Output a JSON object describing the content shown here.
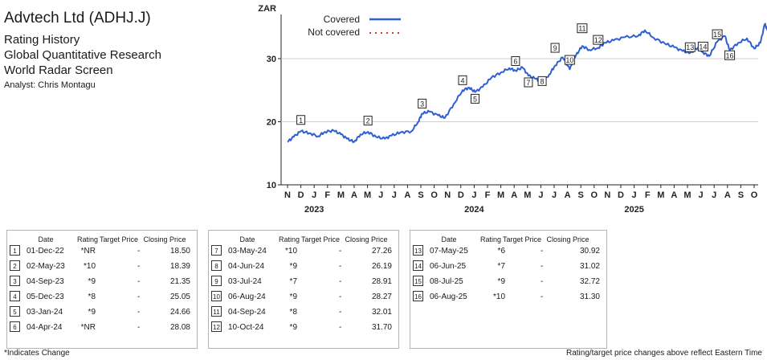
{
  "header": {
    "title": "Advtech Ltd (ADHJ.J)",
    "line1": "Rating History",
    "line2": "Global Quantitative Research",
    "line3": "World Radar Screen",
    "analyst": "Analyst: Chris Montagu"
  },
  "chart_data": {
    "type": "line",
    "ylabel": "ZAR",
    "ylim": [
      10,
      37
    ],
    "yticks": [
      10,
      20,
      30
    ],
    "grid": true,
    "legend": {
      "placement": "top",
      "covered": "Covered",
      "not_covered": "Not covered"
    },
    "x_month_labels": [
      "N",
      "D",
      "J",
      "F",
      "M",
      "A",
      "M",
      "J",
      "J",
      "A",
      "S",
      "O",
      "N",
      "D",
      "J",
      "F",
      "M",
      "A",
      "M",
      "J",
      "J",
      "A",
      "S",
      "O",
      "N",
      "D",
      "J",
      "F",
      "M",
      "A",
      "M",
      "J",
      "J",
      "A",
      "S",
      "O"
    ],
    "x_year_labels": [
      "2023",
      "2024",
      "2025"
    ],
    "start_month": "2022-11",
    "series": [
      {
        "color": "#2f5fd0",
        "points": [
          [
            "2022-11-01",
            16.8
          ],
          [
            "2022-11-15",
            17.6
          ],
          [
            "2022-12-01",
            18.5
          ],
          [
            "2022-12-20",
            18.2
          ],
          [
            "2023-01-10",
            17.7
          ],
          [
            "2023-01-25",
            18.4
          ],
          [
            "2023-02-15",
            18.6
          ],
          [
            "2023-03-01",
            18.0
          ],
          [
            "2023-03-15",
            17.3
          ],
          [
            "2023-04-01",
            16.8
          ],
          [
            "2023-04-15",
            18.0
          ],
          [
            "2023-05-02",
            18.4
          ],
          [
            "2023-05-20",
            17.6
          ],
          [
            "2023-06-10",
            17.3
          ],
          [
            "2023-06-25",
            17.8
          ],
          [
            "2023-07-15",
            18.3
          ],
          [
            "2023-08-10",
            18.5
          ],
          [
            "2023-08-25",
            20.0
          ],
          [
            "2023-09-04",
            21.3
          ],
          [
            "2023-09-20",
            21.6
          ],
          [
            "2023-10-10",
            21.0
          ],
          [
            "2023-10-25",
            20.6
          ],
          [
            "2023-11-15",
            22.8
          ],
          [
            "2023-12-05",
            25.0
          ],
          [
            "2023-12-20",
            25.4
          ],
          [
            "2024-01-03",
            24.7
          ],
          [
            "2024-01-20",
            25.5
          ],
          [
            "2024-02-10",
            27.0
          ],
          [
            "2024-03-01",
            27.8
          ],
          [
            "2024-03-20",
            28.5
          ],
          [
            "2024-04-04",
            28.1
          ],
          [
            "2024-04-20",
            28.6
          ],
          [
            "2024-05-03",
            27.3
          ],
          [
            "2024-05-20",
            26.8
          ],
          [
            "2024-06-04",
            26.2
          ],
          [
            "2024-06-20",
            27.5
          ],
          [
            "2024-07-03",
            28.9
          ],
          [
            "2024-07-20",
            30.2
          ],
          [
            "2024-08-06",
            28.3
          ],
          [
            "2024-08-20",
            30.5
          ],
          [
            "2024-09-04",
            32.0
          ],
          [
            "2024-09-20",
            31.4
          ],
          [
            "2024-10-10",
            31.7
          ],
          [
            "2024-10-25",
            32.5
          ],
          [
            "2024-11-15",
            32.9
          ],
          [
            "2024-12-10",
            33.4
          ],
          [
            "2025-01-10",
            33.6
          ],
          [
            "2025-01-25",
            34.5
          ],
          [
            "2025-02-15",
            33.3
          ],
          [
            "2025-03-10",
            32.4
          ],
          [
            "2025-04-01",
            31.8
          ],
          [
            "2025-04-20",
            31.2
          ],
          [
            "2025-05-07",
            30.9
          ],
          [
            "2025-05-25",
            31.8
          ],
          [
            "2025-06-06",
            31.0
          ],
          [
            "2025-06-20",
            30.4
          ],
          [
            "2025-07-08",
            32.7
          ],
          [
            "2025-07-25",
            33.6
          ],
          [
            "2025-08-06",
            31.3
          ],
          [
            "2025-08-25",
            32.5
          ],
          [
            "2025-09-15",
            33.2
          ],
          [
            "2025-10-01",
            31.6
          ],
          [
            "2025-10-15",
            32.5
          ],
          [
            "2025-10-25",
            35.5
          ],
          [
            "2025-10-31",
            34.5
          ]
        ]
      }
    ],
    "events": [
      {
        "id": "1",
        "date": "01-Dec-22",
        "d": "2022-12-01",
        "rating": "*NR",
        "target": "-",
        "close": "18.50"
      },
      {
        "id": "2",
        "date": "02-May-23",
        "d": "2023-05-02",
        "rating": "*10",
        "target": "-",
        "close": "18.39"
      },
      {
        "id": "3",
        "date": "04-Sep-23",
        "d": "2023-09-04",
        "rating": "*9",
        "target": "-",
        "close": "21.35"
      },
      {
        "id": "4",
        "date": "05-Dec-23",
        "d": "2023-12-05",
        "rating": "*8",
        "target": "-",
        "close": "25.05"
      },
      {
        "id": "5",
        "date": "03-Jan-24",
        "d": "2024-01-03",
        "rating": "*9",
        "target": "-",
        "close": "24.66"
      },
      {
        "id": "6",
        "date": "04-Apr-24",
        "d": "2024-04-04",
        "rating": "*NR",
        "target": "-",
        "close": "28.08"
      },
      {
        "id": "7",
        "date": "03-May-24",
        "d": "2024-05-03",
        "rating": "*10",
        "target": "-",
        "close": "27.26"
      },
      {
        "id": "8",
        "date": "04-Jun-24",
        "d": "2024-06-04",
        "rating": "*9",
        "target": "-",
        "close": "26.19"
      },
      {
        "id": "9",
        "date": "03-Jul-24",
        "d": "2024-07-03",
        "rating": "*7",
        "target": "-",
        "close": "28.91"
      },
      {
        "id": "10",
        "date": "06-Aug-24",
        "d": "2024-08-06",
        "rating": "*9",
        "target": "-",
        "close": "28.27"
      },
      {
        "id": "11",
        "date": "04-Sep-24",
        "d": "2024-09-04",
        "rating": "*8",
        "target": "-",
        "close": "32.01"
      },
      {
        "id": "12",
        "date": "10-Oct-24",
        "d": "2024-10-10",
        "rating": "*9",
        "target": "-",
        "close": "31.70"
      },
      {
        "id": "13",
        "date": "07-May-25",
        "d": "2025-05-07",
        "rating": "*6",
        "target": "-",
        "close": "30.92"
      },
      {
        "id": "14",
        "date": "06-Jun-25",
        "d": "2025-06-06",
        "rating": "*7",
        "target": "-",
        "close": "31.02"
      },
      {
        "id": "15",
        "date": "08-Jul-25",
        "d": "2025-07-08",
        "rating": "*9",
        "target": "-",
        "close": "32.72"
      },
      {
        "id": "16",
        "date": "06-Aug-25",
        "d": "2025-08-06",
        "rating": "*10",
        "target": "-",
        "close": "31.30"
      }
    ]
  },
  "table": {
    "headers": [
      "Date",
      "Rating",
      "Target Price",
      "Closing Price"
    ]
  },
  "footer": {
    "left": "*Indicates Change",
    "right": "Rating/target price changes above reflect Eastern Time"
  }
}
